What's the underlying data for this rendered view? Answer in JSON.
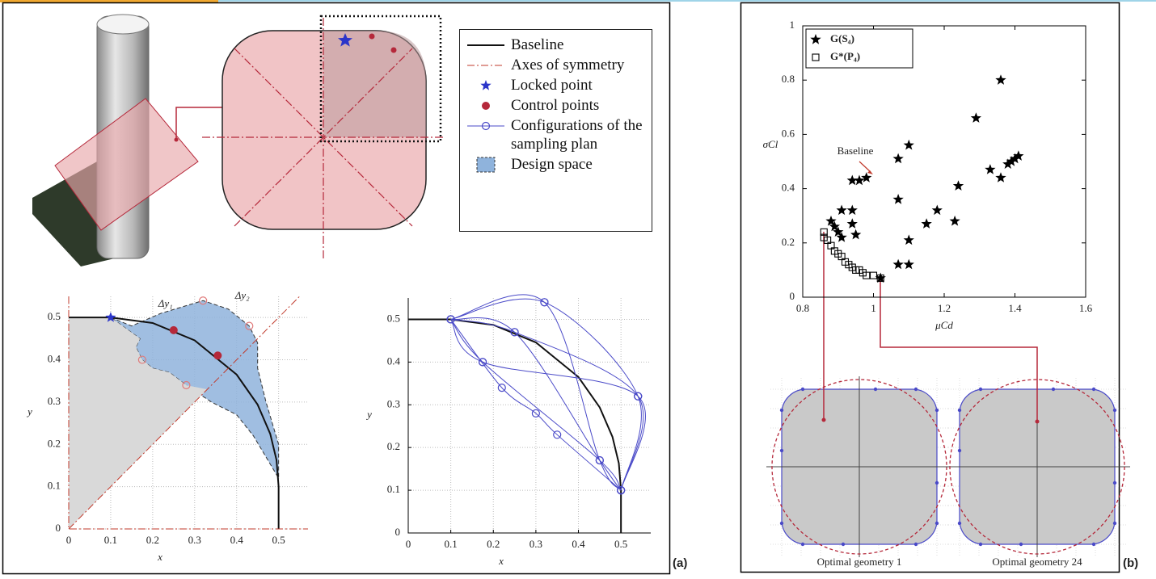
{
  "panel_labels": [
    "(a)",
    "(b)"
  ],
  "chart_data": [
    {
      "type": "line",
      "xlabel": "x",
      "ylabel": "y",
      "xlim": [
        0,
        0.57
      ],
      "ylim": [
        0,
        0.55
      ],
      "xticks": [
        0,
        0.1,
        0.2,
        0.3,
        0.4,
        0.5
      ],
      "yticks": [
        0,
        0.1,
        0.2,
        0.3,
        0.4,
        0.5
      ],
      "grid": true,
      "annotations": [
        "Δy₁",
        "Δy₂"
      ],
      "series": [
        {
          "name": "Baseline",
          "color": "#111111",
          "style": "line",
          "x": [
            0,
            0.1,
            0.2,
            0.3,
            0.4,
            0.45,
            0.48,
            0.495,
            0.5,
            0.5
          ],
          "y": [
            0.5,
            0.5,
            0.487,
            0.446,
            0.365,
            0.294,
            0.225,
            0.163,
            0.1,
            0
          ]
        },
        {
          "name": "Axes of symmetry",
          "color": "#c0392b",
          "style": "dashdot",
          "x": [
            0,
            0,
            0.57,
            null,
            0,
            0.55
          ],
          "y": [
            0.55,
            0,
            0,
            null,
            0,
            0.55
          ]
        },
        {
          "name": "Locked point",
          "color": "#2b35c9",
          "style": "star",
          "x": [
            0.1
          ],
          "y": [
            0.5
          ]
        },
        {
          "name": "Control points",
          "color": "#b5283a",
          "style": "circle",
          "x": [
            0.25,
            0.355
          ],
          "y": [
            0.47,
            0.41
          ]
        },
        {
          "name": "Configurations of the sampling plan",
          "color": "#e07a7a",
          "style": "open-circle",
          "x": [
            0.175,
            0.32,
            0.28,
            0.43
          ],
          "y": [
            0.4,
            0.54,
            0.34,
            0.48
          ]
        },
        {
          "name": "Design space",
          "color": "#8fb3dc",
          "style": "area",
          "x": [
            0.1,
            0.15,
            0.22,
            0.32,
            0.38,
            0.43,
            0.45,
            0.45,
            0.47,
            0.5,
            0.5,
            0.44,
            0.4,
            0.34,
            0.28,
            0.24,
            0.2,
            0.175,
            0.16,
            0.17
          ],
          "y": [
            0.5,
            0.48,
            0.51,
            0.54,
            0.52,
            0.48,
            0.44,
            0.38,
            0.3,
            0.2,
            0.12,
            0.22,
            0.27,
            0.3,
            0.34,
            0.37,
            0.38,
            0.4,
            0.43,
            0.45
          ]
        },
        {
          "color": "#d9d9d9",
          "style": "area",
          "x": [
            0,
            0,
            0.1,
            0.17,
            0.16,
            0.175,
            0.2,
            0.24,
            0.28,
            0.33
          ],
          "y": [
            0,
            0.5,
            0.5,
            0.45,
            0.43,
            0.4,
            0.38,
            0.37,
            0.34,
            0.33
          ]
        }
      ]
    },
    {
      "type": "line",
      "xlabel": "x",
      "ylabel": "y",
      "xlim": [
        0,
        0.57
      ],
      "ylim": [
        0,
        0.55
      ],
      "xticks": [
        0,
        0.1,
        0.2,
        0.3,
        0.4,
        0.5
      ],
      "yticks": [
        0,
        0.1,
        0.2,
        0.3,
        0.4,
        0.5
      ],
      "grid": true,
      "series": [
        {
          "color": "#111111",
          "style": "line",
          "x": [
            0,
            0.1,
            0.2,
            0.3,
            0.4,
            0.45,
            0.48,
            0.495,
            0.5,
            0.5
          ],
          "y": [
            0.5,
            0.5,
            0.487,
            0.446,
            0.365,
            0.294,
            0.225,
            0.163,
            0.1,
            0
          ]
        },
        {
          "color": "#4a4ac8",
          "style": "open-circle",
          "curve": "smooth",
          "x": [
            0.1,
            0.175,
            0.45,
            0.5
          ],
          "y": [
            0.5,
            0.4,
            0.17,
            0.1
          ]
        },
        {
          "color": "#4a4ac8",
          "style": "open-circle",
          "curve": "smooth",
          "x": [
            0.1,
            0.25,
            0.45,
            0.5
          ],
          "y": [
            0.5,
            0.47,
            0.17,
            0.1
          ]
        },
        {
          "color": "#4a4ac8",
          "style": "open-circle",
          "curve": "smooth",
          "x": [
            0.1,
            0.32,
            0.45,
            0.5
          ],
          "y": [
            0.5,
            0.54,
            0.17,
            0.1
          ]
        },
        {
          "color": "#4a4ac8",
          "style": "open-circle",
          "curve": "smooth",
          "x": [
            0.1,
            0.175,
            0.54,
            0.5
          ],
          "y": [
            0.5,
            0.4,
            0.32,
            0.1
          ]
        },
        {
          "color": "#4a4ac8",
          "style": "open-circle",
          "curve": "smooth",
          "x": [
            0.1,
            0.25,
            0.54,
            0.5
          ],
          "y": [
            0.5,
            0.47,
            0.32,
            0.1
          ]
        },
        {
          "color": "#4a4ac8",
          "style": "open-circle",
          "curve": "smooth",
          "x": [
            0.1,
            0.32,
            0.54,
            0.5
          ],
          "y": [
            0.5,
            0.54,
            0.32,
            0.1
          ]
        },
        {
          "color": "#4a4ac8",
          "style": "open-circle",
          "curve": "smooth",
          "x": [
            0.1,
            0.22,
            0.3,
            0.35,
            0.5
          ],
          "y": [
            0.5,
            0.34,
            0.28,
            0.23,
            0.1
          ]
        }
      ]
    },
    {
      "type": "scatter",
      "xlabel": "μCd",
      "ylabel": "σCl",
      "xlim": [
        0.8,
        1.6
      ],
      "ylim": [
        0,
        1
      ],
      "xticks": [
        0.8,
        1,
        1.2,
        1.4,
        1.6
      ],
      "yticks": [
        0,
        0.2,
        0.4,
        0.6,
        0.8,
        1
      ],
      "grid": false,
      "legend": "upper left",
      "annotations": [
        "Baseline"
      ],
      "optimal_labels": [
        "Optimal geometry 1",
        "Optimal geometry 24"
      ],
      "series": [
        {
          "name": "G(S₄)",
          "color": "#000000",
          "style": "star",
          "x": [
            1.36,
            1.29,
            1.1,
            1.07,
            0.98,
            0.96,
            0.94,
            1.41,
            1.4,
            1.39,
            1.38,
            1.33,
            1.36,
            1.24,
            1.07,
            0.91,
            0.94,
            1.18,
            0.88,
            0.94,
            1.15,
            1.23,
            0.95,
            1.1,
            0.89,
            0.9,
            0.91,
            1.07,
            1.1,
            1.02
          ],
          "y": [
            0.8,
            0.66,
            0.56,
            0.51,
            0.44,
            0.43,
            0.43,
            0.52,
            0.51,
            0.5,
            0.49,
            0.47,
            0.44,
            0.41,
            0.36,
            0.32,
            0.32,
            0.32,
            0.28,
            0.27,
            0.27,
            0.28,
            0.23,
            0.21,
            0.26,
            0.24,
            0.22,
            0.12,
            0.12,
            0.07
          ]
        },
        {
          "name": "G*(P₄)",
          "color": "#000000",
          "style": "open-square",
          "x": [
            0.86,
            0.86,
            0.87,
            0.88,
            0.89,
            0.9,
            0.91,
            0.92,
            0.93,
            0.94,
            0.95,
            0.96,
            0.97,
            0.98,
            1.0,
            1.02
          ],
          "y": [
            0.24,
            0.22,
            0.21,
            0.19,
            0.17,
            0.16,
            0.15,
            0.13,
            0.12,
            0.11,
            0.1,
            0.1,
            0.09,
            0.08,
            0.08,
            0.07
          ]
        }
      ]
    }
  ]
}
